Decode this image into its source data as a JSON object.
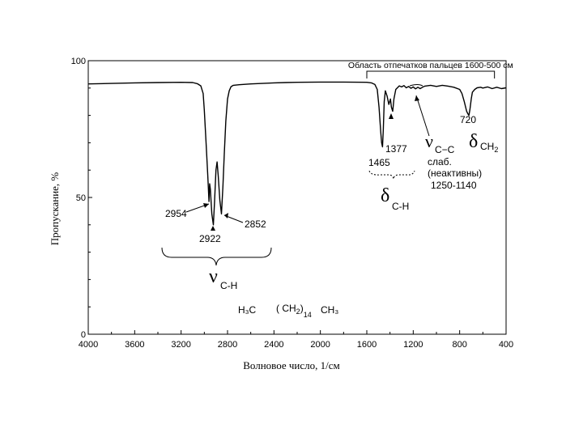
{
  "chart_data": {
    "type": "line",
    "title": "",
    "xlabel": "Волновое число, 1/см",
    "ylabel": "Пропускание, %",
    "xlim": [
      4000,
      400
    ],
    "ylim": [
      0,
      100
    ],
    "x_ticks": [
      4000,
      3600,
      3200,
      2800,
      2400,
      2000,
      1600,
      1200,
      800,
      400
    ],
    "x_tick_labels": [
      "4000",
      "3600",
      "3200",
      "2800",
      "2400",
      "2000",
      "1600",
      "1200",
      "800",
      "400"
    ],
    "y_ticks": [
      0,
      50,
      100
    ],
    "y_tick_labels": [
      "0",
      "50",
      "100"
    ],
    "grid": false,
    "series": [
      {
        "color": "#000000",
        "points": [
          [
            4000,
            91.5
          ],
          [
            3800,
            91.7
          ],
          [
            3600,
            91.9
          ],
          [
            3400,
            92.0
          ],
          [
            3200,
            92.1
          ],
          [
            3100,
            92.0
          ],
          [
            3060,
            91.6
          ],
          [
            3030,
            90.8
          ],
          [
            3010,
            88.0
          ],
          [
            3000,
            82.0
          ],
          [
            2985,
            70.0
          ],
          [
            2970,
            58.0
          ],
          [
            2960,
            48.5
          ],
          [
            2954,
            55.0
          ],
          [
            2948,
            53.0
          ],
          [
            2935,
            44.0
          ],
          [
            2922,
            40.0
          ],
          [
            2912,
            48.0
          ],
          [
            2900,
            60.0
          ],
          [
            2890,
            63.0
          ],
          [
            2880,
            58.0
          ],
          [
            2866,
            49.0
          ],
          [
            2852,
            44.0
          ],
          [
            2840,
            54.0
          ],
          [
            2828,
            66.0
          ],
          [
            2815,
            78.0
          ],
          [
            2800,
            86.0
          ],
          [
            2785,
            89.0
          ],
          [
            2770,
            90.5
          ],
          [
            2750,
            91.0
          ],
          [
            2700,
            91.2
          ],
          [
            2600,
            91.5
          ],
          [
            2500,
            91.7
          ],
          [
            2400,
            91.9
          ],
          [
            2300,
            92.0
          ],
          [
            2200,
            92.1
          ],
          [
            2000,
            92.2
          ],
          [
            1800,
            92.2
          ],
          [
            1600,
            92.1
          ],
          [
            1560,
            91.9
          ],
          [
            1530,
            91.3
          ],
          [
            1510,
            89.5
          ],
          [
            1495,
            83.0
          ],
          [
            1480,
            74.0
          ],
          [
            1472,
            70.0
          ],
          [
            1465,
            68.5
          ],
          [
            1458,
            75.0
          ],
          [
            1450,
            85.0
          ],
          [
            1440,
            89.0
          ],
          [
            1425,
            87.0
          ],
          [
            1410,
            84.0
          ],
          [
            1396,
            86.0
          ],
          [
            1388,
            83.0
          ],
          [
            1377,
            81.5
          ],
          [
            1366,
            86.0
          ],
          [
            1350,
            89.5
          ],
          [
            1320,
            90.8
          ],
          [
            1300,
            90.4
          ],
          [
            1280,
            90.9
          ],
          [
            1260,
            90.1
          ],
          [
            1240,
            90.6
          ],
          [
            1220,
            89.9
          ],
          [
            1200,
            90.4
          ],
          [
            1180,
            89.7
          ],
          [
            1160,
            90.3
          ],
          [
            1140,
            89.8
          ],
          [
            1120,
            90.3
          ],
          [
            1100,
            90.7
          ],
          [
            1050,
            91.0
          ],
          [
            1000,
            90.6
          ],
          [
            950,
            91.0
          ],
          [
            900,
            90.7
          ],
          [
            850,
            90.3
          ],
          [
            800,
            89.5
          ],
          [
            780,
            88.0
          ],
          [
            760,
            85.0
          ],
          [
            740,
            81.5
          ],
          [
            728,
            80.5
          ],
          [
            720,
            80.0
          ],
          [
            712,
            82.0
          ],
          [
            700,
            86.0
          ],
          [
            690,
            88.5
          ],
          [
            670,
            89.5
          ],
          [
            650,
            90.1
          ],
          [
            620,
            90.3
          ],
          [
            600,
            90.0
          ],
          [
            560,
            90.4
          ],
          [
            520,
            89.8
          ],
          [
            480,
            90.3
          ],
          [
            440,
            89.8
          ],
          [
            400,
            90.1
          ]
        ]
      }
    ],
    "annotations": {
      "region_label": "Область отпечатков пальцев 1600-500 см",
      "region_range": [
        1600,
        500
      ],
      "peak_2954": "2954",
      "peak_2922": "2922",
      "peak_2852": "2852",
      "nu_ch_symbol": "ν",
      "nu_ch_sub": "C-H",
      "peak_1465": "1465",
      "peak_1377": "1377",
      "delta_ch_symbol": "δ",
      "delta_ch_sub": "C-H",
      "nu_cc_symbol": "ν",
      "nu_cc_sub": "C−C",
      "weak": "слаб.",
      "inactive": "(неактивны)",
      "cc_range": "1250-1140",
      "peak_720": "720",
      "delta_ch2_symbol": "δ",
      "delta_ch2_sub": "CH",
      "delta_ch2_sub2": "2",
      "formula_h3c": "H₃C",
      "formula_group_open": "( CH",
      "formula_group_sub": "2",
      "formula_group_close": ")",
      "formula_index": "14",
      "formula_ch3": "CH₃"
    }
  }
}
